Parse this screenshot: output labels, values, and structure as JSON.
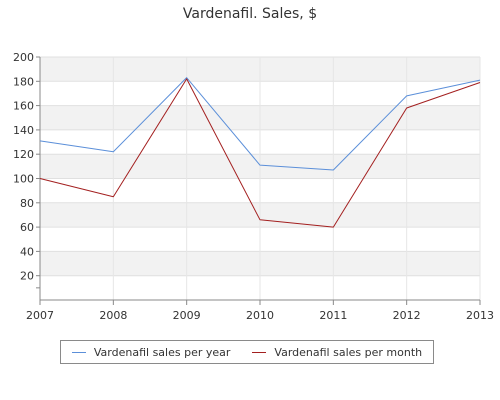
{
  "chart_data": {
    "type": "line",
    "title": "Vardenafil. Sales, $",
    "xlabel": "",
    "ylabel": "",
    "categories": [
      "2007",
      "2008",
      "2009",
      "2010",
      "2011",
      "2012",
      "2013"
    ],
    "y_ticks": [
      20,
      40,
      60,
      80,
      100,
      120,
      140,
      160,
      180,
      200
    ],
    "ylim": [
      0,
      200
    ],
    "grid": "horizontal bands",
    "legend_position": "bottom",
    "series": [
      {
        "name": "Vardenafil sales per year",
        "color": "#5b8fd9",
        "values": [
          131,
          122,
          183,
          111,
          107,
          168,
          181
        ]
      },
      {
        "name": "Vardenafil sales per month",
        "color": "#a31f1f",
        "values": [
          100,
          85,
          182,
          66,
          60,
          158,
          179
        ]
      }
    ]
  }
}
